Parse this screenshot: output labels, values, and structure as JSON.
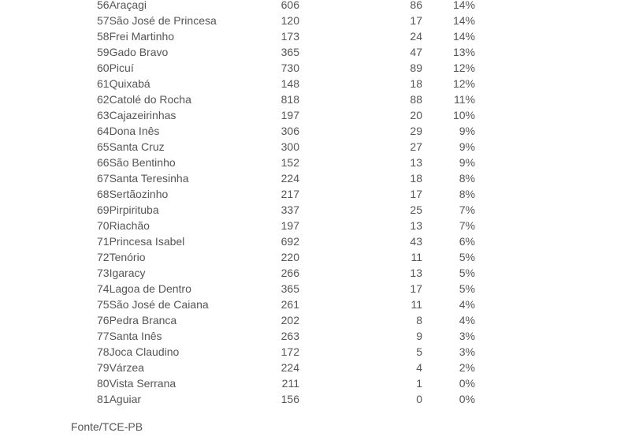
{
  "rows": [
    {
      "rank": "56",
      "name": "Araçagi",
      "a": "606",
      "b": "86",
      "pct": "14%"
    },
    {
      "rank": "57",
      "name": "São José de Princesa",
      "a": "120",
      "b": "17",
      "pct": "14%"
    },
    {
      "rank": "58",
      "name": "Frei Martinho",
      "a": "173",
      "b": "24",
      "pct": "14%"
    },
    {
      "rank": "59",
      "name": "Gado Bravo",
      "a": "365",
      "b": "47",
      "pct": "13%"
    },
    {
      "rank": "60",
      "name": "Picuí",
      "a": "730",
      "b": "89",
      "pct": "12%"
    },
    {
      "rank": "61",
      "name": "Quixabá",
      "a": "148",
      "b": "18",
      "pct": "12%"
    },
    {
      "rank": "62",
      "name": "Catolé do Rocha",
      "a": "818",
      "b": "88",
      "pct": "11%"
    },
    {
      "rank": "63",
      "name": "Cajazeirinhas",
      "a": "197",
      "b": "20",
      "pct": "10%"
    },
    {
      "rank": "64",
      "name": "Dona Inês",
      "a": "306",
      "b": "29",
      "pct": "9%"
    },
    {
      "rank": "65",
      "name": "Santa Cruz",
      "a": "300",
      "b": "27",
      "pct": "9%"
    },
    {
      "rank": "66",
      "name": "São Bentinho",
      "a": "152",
      "b": "13",
      "pct": "9%"
    },
    {
      "rank": "67",
      "name": "Santa Teresinha",
      "a": "224",
      "b": "18",
      "pct": "8%"
    },
    {
      "rank": "68",
      "name": "Sertãozinho",
      "a": "217",
      "b": "17",
      "pct": "8%"
    },
    {
      "rank": "69",
      "name": "Pirpirituba",
      "a": "337",
      "b": "25",
      "pct": "7%"
    },
    {
      "rank": "70",
      "name": "Riachão",
      "a": "197",
      "b": "13",
      "pct": "7%"
    },
    {
      "rank": "71",
      "name": "Princesa Isabel",
      "a": "692",
      "b": "43",
      "pct": "6%"
    },
    {
      "rank": "72",
      "name": "Tenório",
      "a": "220",
      "b": "11",
      "pct": "5%"
    },
    {
      "rank": "73",
      "name": "Igaracy",
      "a": "266",
      "b": "13",
      "pct": "5%"
    },
    {
      "rank": "74",
      "name": "Lagoa de Dentro",
      "a": "365",
      "b": "17",
      "pct": "5%"
    },
    {
      "rank": "75",
      "name": "São José de Caiana",
      "a": "261",
      "b": "11",
      "pct": "4%"
    },
    {
      "rank": "76",
      "name": "Pedra Branca",
      "a": "202",
      "b": "8",
      "pct": "4%"
    },
    {
      "rank": "77",
      "name": "Santa Inês",
      "a": "263",
      "b": "9",
      "pct": "3%"
    },
    {
      "rank": "78",
      "name": "Joca Claudino",
      "a": "172",
      "b": "5",
      "pct": "3%"
    },
    {
      "rank": "79",
      "name": "Várzea",
      "a": "224",
      "b": "4",
      "pct": "2%"
    },
    {
      "rank": "80",
      "name": "Vista Serrana",
      "a": "211",
      "b": "1",
      "pct": "0%"
    },
    {
      "rank": "81",
      "name": "Aguiar",
      "a": "156",
      "b": "0",
      "pct": "0%"
    }
  ],
  "source": "Fonte/TCE-PB"
}
